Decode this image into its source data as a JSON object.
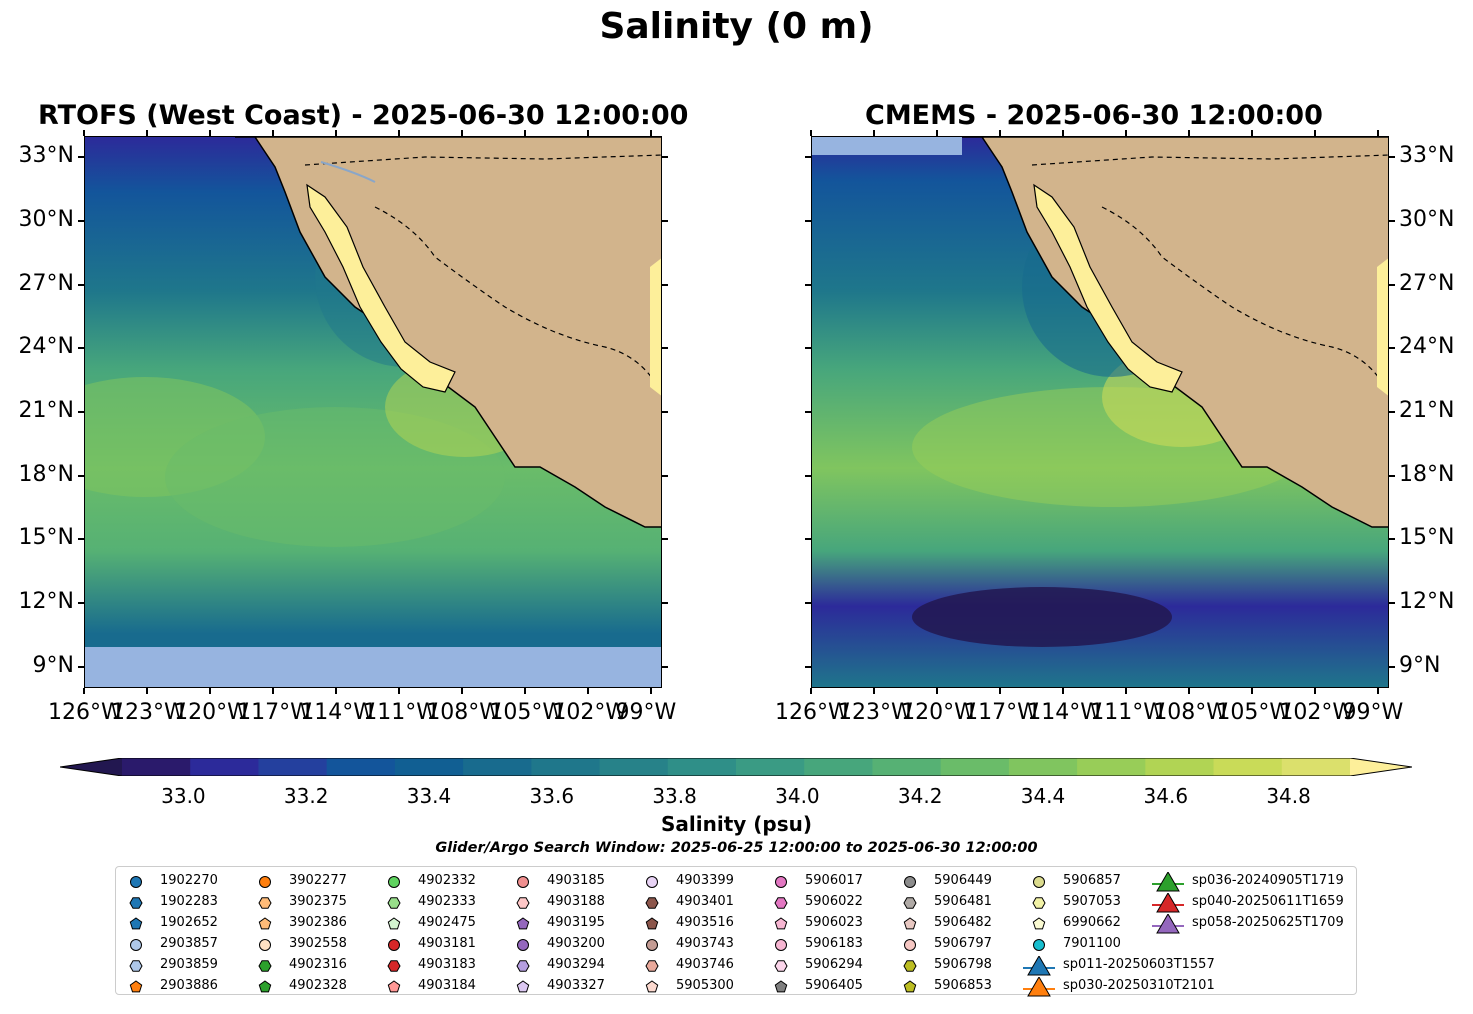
{
  "title": "Salinity (0 m)",
  "panels": [
    {
      "title": "RTOFS (West Coast) - 2025-06-30 12:00:00"
    },
    {
      "title": "CMEMS - 2025-06-30 12:00:00"
    }
  ],
  "lat_labels": [
    "33°N",
    "30°N",
    "27°N",
    "24°N",
    "21°N",
    "18°N",
    "15°N",
    "12°N",
    "9°N"
  ],
  "lon_labels": [
    "126°W",
    "123°W",
    "120°W",
    "117°W",
    "114°W",
    "111°W",
    "108°W",
    "105°W",
    "102°W",
    "99°W"
  ],
  "colorbar": {
    "label": "Salinity (psu)",
    "ticks": [
      "33.0",
      "33.2",
      "33.4",
      "33.6",
      "33.8",
      "34.0",
      "34.2",
      "34.4",
      "34.6",
      "34.8"
    ],
    "min": 32.9,
    "max": 34.9,
    "extend": "both",
    "colormap": "haline",
    "colors": [
      "#2a1a6b",
      "#2c2a9a",
      "#24409e",
      "#13559b",
      "#115f93",
      "#186b8e",
      "#1f778b",
      "#278289",
      "#2f8f88",
      "#3a9b84",
      "#47a67c",
      "#56b174",
      "#6abc69",
      "#80c55f",
      "#98cd58",
      "#b1d454",
      "#c9db58",
      "#dbe06c"
    ],
    "under_color": "#221750",
    "over_color": "#fdef9a"
  },
  "search_window": "Glider/Argo Search Window: 2025-06-25 12:00:00 to 2025-06-30 12:00:00",
  "legend": [
    {
      "id": "1902270",
      "marker": "circle",
      "color": "#1f77b4"
    },
    {
      "id": "1902283",
      "marker": "hexagon",
      "color": "#1f77b4"
    },
    {
      "id": "1902652",
      "marker": "pentagon",
      "color": "#1f77b4"
    },
    {
      "id": "2903857",
      "marker": "circle",
      "color": "#aec7e8"
    },
    {
      "id": "2903859",
      "marker": "hexagon",
      "color": "#aec7e8"
    },
    {
      "id": "2903886",
      "marker": "pentagon",
      "color": "#ff7f0e"
    },
    {
      "id": "3902277",
      "marker": "circle",
      "color": "#ff7f0e"
    },
    {
      "id": "3902375",
      "marker": "hexagon",
      "color": "#ffbb78"
    },
    {
      "id": "3902386",
      "marker": "pentagon",
      "color": "#ffbb78"
    },
    {
      "id": "3902558",
      "marker": "circle",
      "color": "#ffe0c2"
    },
    {
      "id": "4902316",
      "marker": "hexagon",
      "color": "#2ca02c"
    },
    {
      "id": "4902328",
      "marker": "pentagon",
      "color": "#2ca02c"
    },
    {
      "id": "4902332",
      "marker": "circle",
      "color": "#5fd35f"
    },
    {
      "id": "4902333",
      "marker": "hexagon",
      "color": "#98df8a"
    },
    {
      "id": "4902475",
      "marker": "pentagon",
      "color": "#d4f5d0"
    },
    {
      "id": "4903181",
      "marker": "circle",
      "color": "#d62728"
    },
    {
      "id": "4903183",
      "marker": "hexagon",
      "color": "#d62728"
    },
    {
      "id": "4903184",
      "marker": "pentagon",
      "color": "#ff9896"
    },
    {
      "id": "4903185",
      "marker": "circle",
      "color": "#f08f8f"
    },
    {
      "id": "4903188",
      "marker": "hexagon",
      "color": "#ffc7c7"
    },
    {
      "id": "4903195",
      "marker": "pentagon",
      "color": "#9467bd"
    },
    {
      "id": "4903200",
      "marker": "circle",
      "color": "#9467bd"
    },
    {
      "id": "4903294",
      "marker": "hexagon",
      "color": "#b59ee0"
    },
    {
      "id": "4903327",
      "marker": "pentagon",
      "color": "#dcc8f2"
    },
    {
      "id": "4903399",
      "marker": "circle",
      "color": "#e8d3f5"
    },
    {
      "id": "4903401",
      "marker": "hexagon",
      "color": "#8c564b"
    },
    {
      "id": "4903516",
      "marker": "pentagon",
      "color": "#8c564b"
    },
    {
      "id": "4903743",
      "marker": "circle",
      "color": "#c49c94"
    },
    {
      "id": "4903746",
      "marker": "hexagon",
      "color": "#e9a99b"
    },
    {
      "id": "5905300",
      "marker": "pentagon",
      "color": "#fcd9cf"
    },
    {
      "id": "5906017",
      "marker": "circle",
      "color": "#e377c2"
    },
    {
      "id": "5906022",
      "marker": "hexagon",
      "color": "#e377c2"
    },
    {
      "id": "5906023",
      "marker": "pentagon",
      "color": "#f7b6d2"
    },
    {
      "id": "5906183",
      "marker": "circle",
      "color": "#f7b6d2"
    },
    {
      "id": "5906294",
      "marker": "hexagon",
      "color": "#fbd5ea"
    },
    {
      "id": "5906405",
      "marker": "pentagon",
      "color": "#7f7f7f"
    },
    {
      "id": "5906449",
      "marker": "circle",
      "color": "#8c8c8c"
    },
    {
      "id": "5906481",
      "marker": "hexagon",
      "color": "#b0aaa6"
    },
    {
      "id": "5906482",
      "marker": "pentagon",
      "color": "#e8c8c2"
    },
    {
      "id": "5906797",
      "marker": "circle",
      "color": "#f6c7c3"
    },
    {
      "id": "5906798",
      "marker": "hexagon",
      "color": "#bcbd22"
    },
    {
      "id": "5906853",
      "marker": "pentagon",
      "color": "#bcbd22"
    },
    {
      "id": "5906857",
      "marker": "circle",
      "color": "#dbdb8d"
    },
    {
      "id": "5907053",
      "marker": "hexagon",
      "color": "#f2f2a6"
    },
    {
      "id": "6990662",
      "marker": "pentagon",
      "color": "#fbfbd3"
    },
    {
      "id": "7901100",
      "marker": "circle",
      "color": "#17becf"
    },
    {
      "id": "sp011-20250603T1557",
      "marker": "triangle",
      "color": "#1f77b4"
    },
    {
      "id": "sp030-20250310T2101",
      "marker": "triangle",
      "color": "#ff7f0e"
    },
    {
      "id": "sp036-20240905T1719",
      "marker": "triangle",
      "color": "#2ca02c"
    },
    {
      "id": "sp040-20250611T1659",
      "marker": "triangle",
      "color": "#d62728"
    },
    {
      "id": "sp058-20250625T1709",
      "marker": "triangle",
      "color": "#9467bd"
    }
  ],
  "colors": {
    "land": "#d2b48c",
    "rtofs_nodata": "#97b4e0"
  }
}
